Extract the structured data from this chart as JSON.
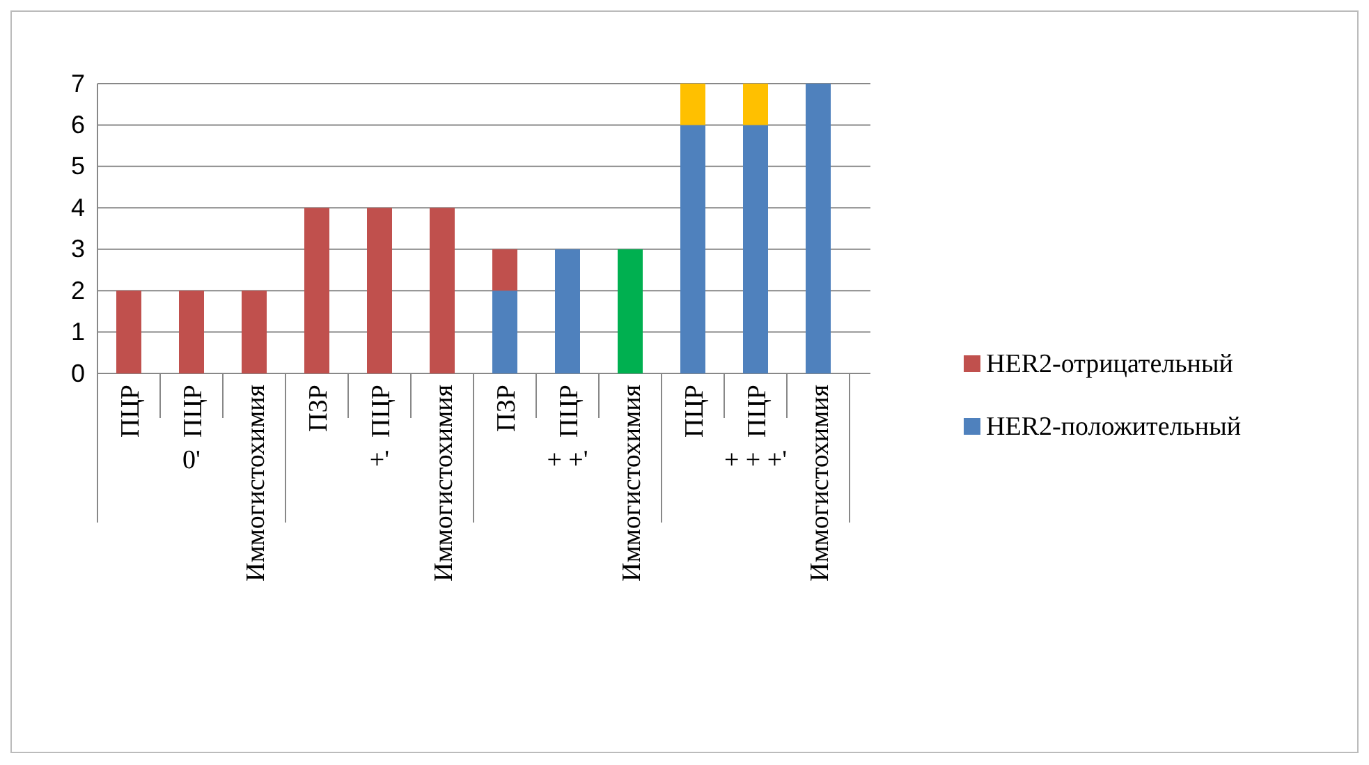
{
  "chart_data": {
    "type": "bar",
    "stacked": true,
    "categories": [
      "ПЦР",
      "ПЦР",
      "Иммогистохимия",
      "ПЗР",
      "ПЦР",
      "Иммогистохимия",
      "ПЗР",
      "ПЦР",
      "Иммогистохимия",
      "ПЦР",
      "ПЦР",
      "Иммогистохимия"
    ],
    "series": [
      {
        "name": "HER2-положительный",
        "color": "#4f81bd",
        "values": [
          0,
          0,
          0,
          0,
          0,
          0,
          2,
          3,
          0,
          6,
          6,
          7
        ]
      },
      {
        "name": "HER2-отрицательный",
        "color": "#c0504d",
        "values": [
          2,
          2,
          2,
          4,
          4,
          4,
          1,
          0,
          0,
          0,
          0,
          0
        ]
      },
      {
        "color": "#00b050",
        "values": [
          0,
          0,
          0,
          0,
          0,
          0,
          0,
          0,
          3,
          0,
          0,
          0
        ]
      },
      {
        "color": "#ffc000",
        "values": [
          0,
          0,
          0,
          0,
          0,
          0,
          0,
          0,
          0,
          1,
          1,
          0
        ]
      }
    ],
    "annotations": [
      "0'",
      "+'",
      "+ +'",
      "+ + +'"
    ],
    "ylim": [
      0,
      7
    ],
    "yticks": [
      0,
      1,
      2,
      3,
      4,
      5,
      6,
      7
    ],
    "grid": "y",
    "legend": "right"
  }
}
